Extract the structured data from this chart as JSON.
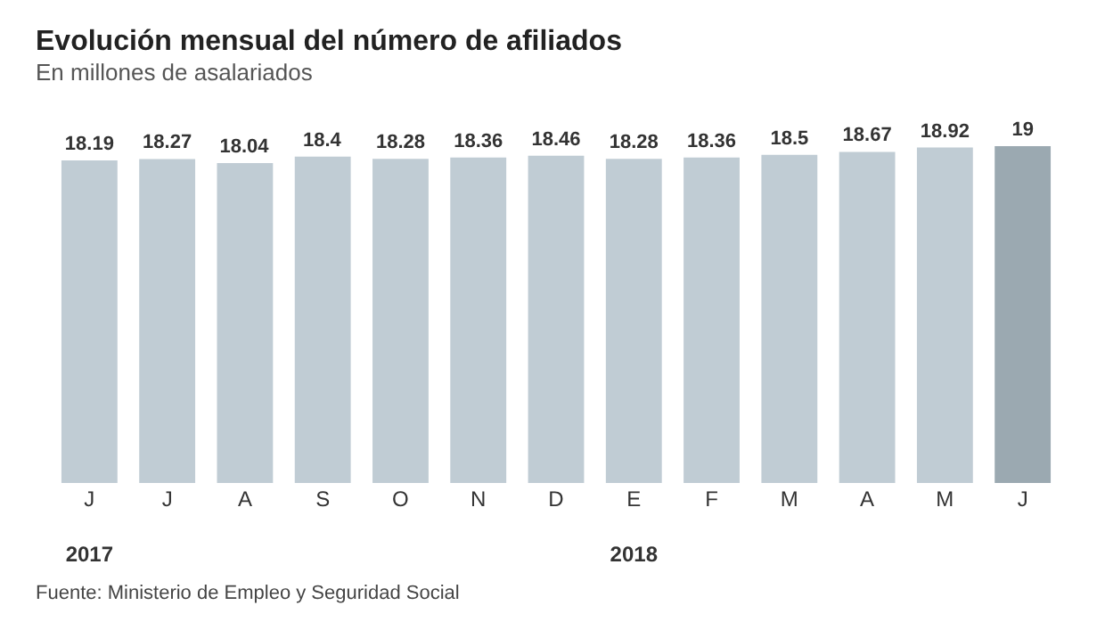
{
  "chart_data": {
    "type": "bar",
    "title": "Evolución mensual del número de afiliados",
    "subtitle": "En millones de asalariados",
    "categories": [
      "J\n2017",
      "J",
      "A",
      "S",
      "O",
      "N",
      "D",
      "E\n2018",
      "F",
      "M",
      "A",
      "M",
      "J"
    ],
    "values": [
      18.19,
      18.27,
      18.04,
      18.4,
      18.28,
      18.36,
      18.46,
      18.28,
      18.36,
      18.5,
      18.67,
      18.92,
      19
    ],
    "colors": [
      "#c0ccd4",
      "#c0ccd4",
      "#c0ccd4",
      "#c0ccd4",
      "#c0ccd4",
      "#c0ccd4",
      "#c0ccd4",
      "#c0ccd4",
      "#c0ccd4",
      "#c0ccd4",
      "#c0ccd4",
      "#c0ccd4",
      "#9ba9b1"
    ],
    "data_labels": true,
    "tick_labels": "x",
    "annotations": [
      "Fuente: Ministerio de Empleo y Seguridad Social"
    ]
  }
}
